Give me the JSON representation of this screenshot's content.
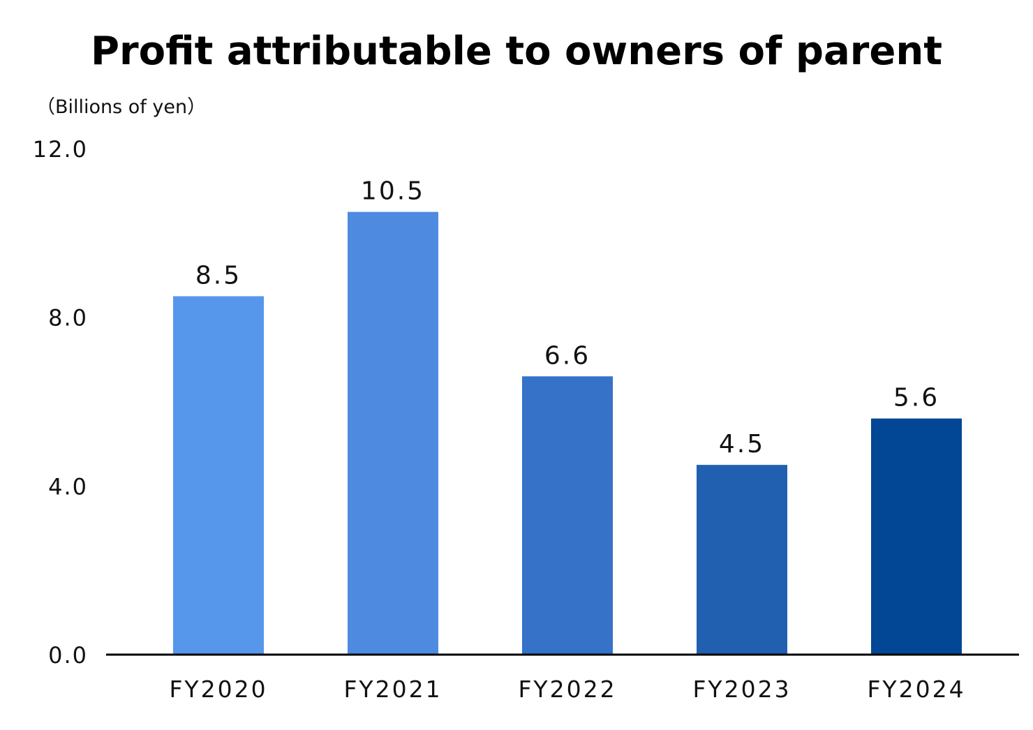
{
  "chart_data": {
    "type": "bar",
    "title": "Profit attributable to owners of parent",
    "unit_label": "（Billions of yen）",
    "xlabel": "",
    "ylabel": "",
    "categories": [
      "FY2020",
      "FY2021",
      "FY2022",
      "FY2023",
      "FY2024"
    ],
    "values": [
      8.5,
      10.5,
      6.6,
      4.5,
      5.6
    ],
    "value_labels": [
      "8.5",
      "10.5",
      "6.6",
      "4.5",
      "5.6"
    ],
    "bar_colors": [
      "#5797eb",
      "#4e8be0",
      "#3572c8",
      "#2160b1",
      "#014795"
    ],
    "ylim": [
      0,
      12
    ],
    "yticks": [
      0,
      4,
      8,
      12
    ],
    "ytick_labels": [
      "0.0",
      "4.0",
      "8.0",
      "12.0"
    ],
    "grid": false,
    "legend": "none",
    "axis_color": "#000000"
  }
}
